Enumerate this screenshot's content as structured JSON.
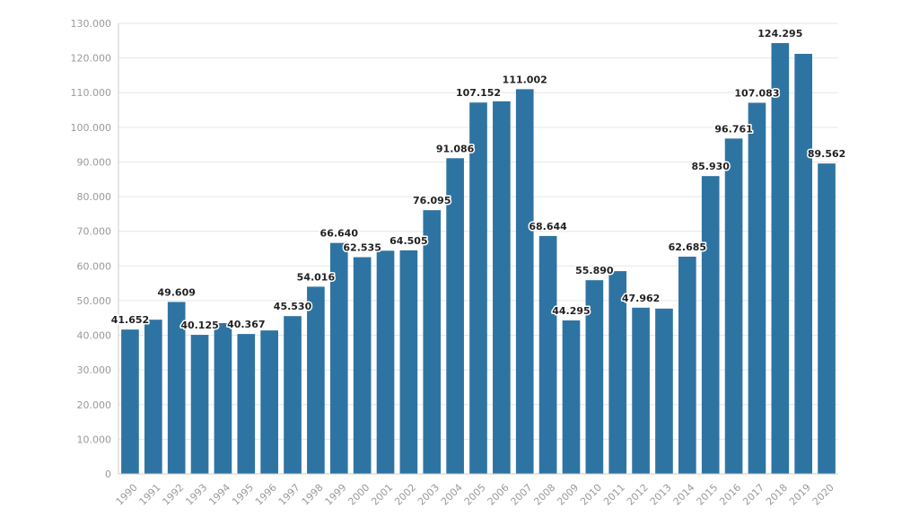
{
  "chart_data": {
    "type": "bar",
    "title": "",
    "xlabel": "",
    "ylabel": "",
    "ylim": [
      0,
      130000
    ],
    "yticks": [
      "0",
      "10.000",
      "20.000",
      "30.000",
      "40.000",
      "50.000",
      "60.000",
      "70.000",
      "80.000",
      "90.000",
      "100.000",
      "110.000",
      "120.000",
      "130.000"
    ],
    "grid": true,
    "bar_color": "#2e74a3",
    "categories": [
      "1990",
      "1991",
      "1992",
      "1993",
      "1994",
      "1995",
      "1996",
      "1997",
      "1998",
      "1999",
      "2000",
      "2001",
      "2002",
      "2003",
      "2004",
      "2005",
      "2006",
      "2007",
      "2008",
      "2009",
      "2010",
      "2011",
      "2012",
      "2013",
      "2014",
      "2015",
      "2016",
      "2017",
      "2018",
      "2019",
      "2020"
    ],
    "values": [
      41652,
      44500,
      49609,
      40125,
      43500,
      40367,
      41400,
      45530,
      54016,
      66640,
      62535,
      64400,
      64505,
      76095,
      91086,
      107152,
      107500,
      111002,
      68644,
      44295,
      55890,
      58500,
      47962,
      47700,
      62685,
      85930,
      96761,
      107083,
      124295,
      121200,
      89562
    ],
    "data_labels": [
      "41.652",
      "",
      "49.609",
      "40.125",
      "",
      "40.367",
      "",
      "45.530",
      "54.016",
      "66.640",
      "62.535",
      "",
      "64.505",
      "76.095",
      "91.086",
      "107.152",
      "",
      "111.002",
      "68.644",
      "44.295",
      "55.890",
      "",
      "47.962",
      "",
      "62.685",
      "85.930",
      "96.761",
      "107.083",
      "124.295",
      "",
      "89.562"
    ]
  }
}
